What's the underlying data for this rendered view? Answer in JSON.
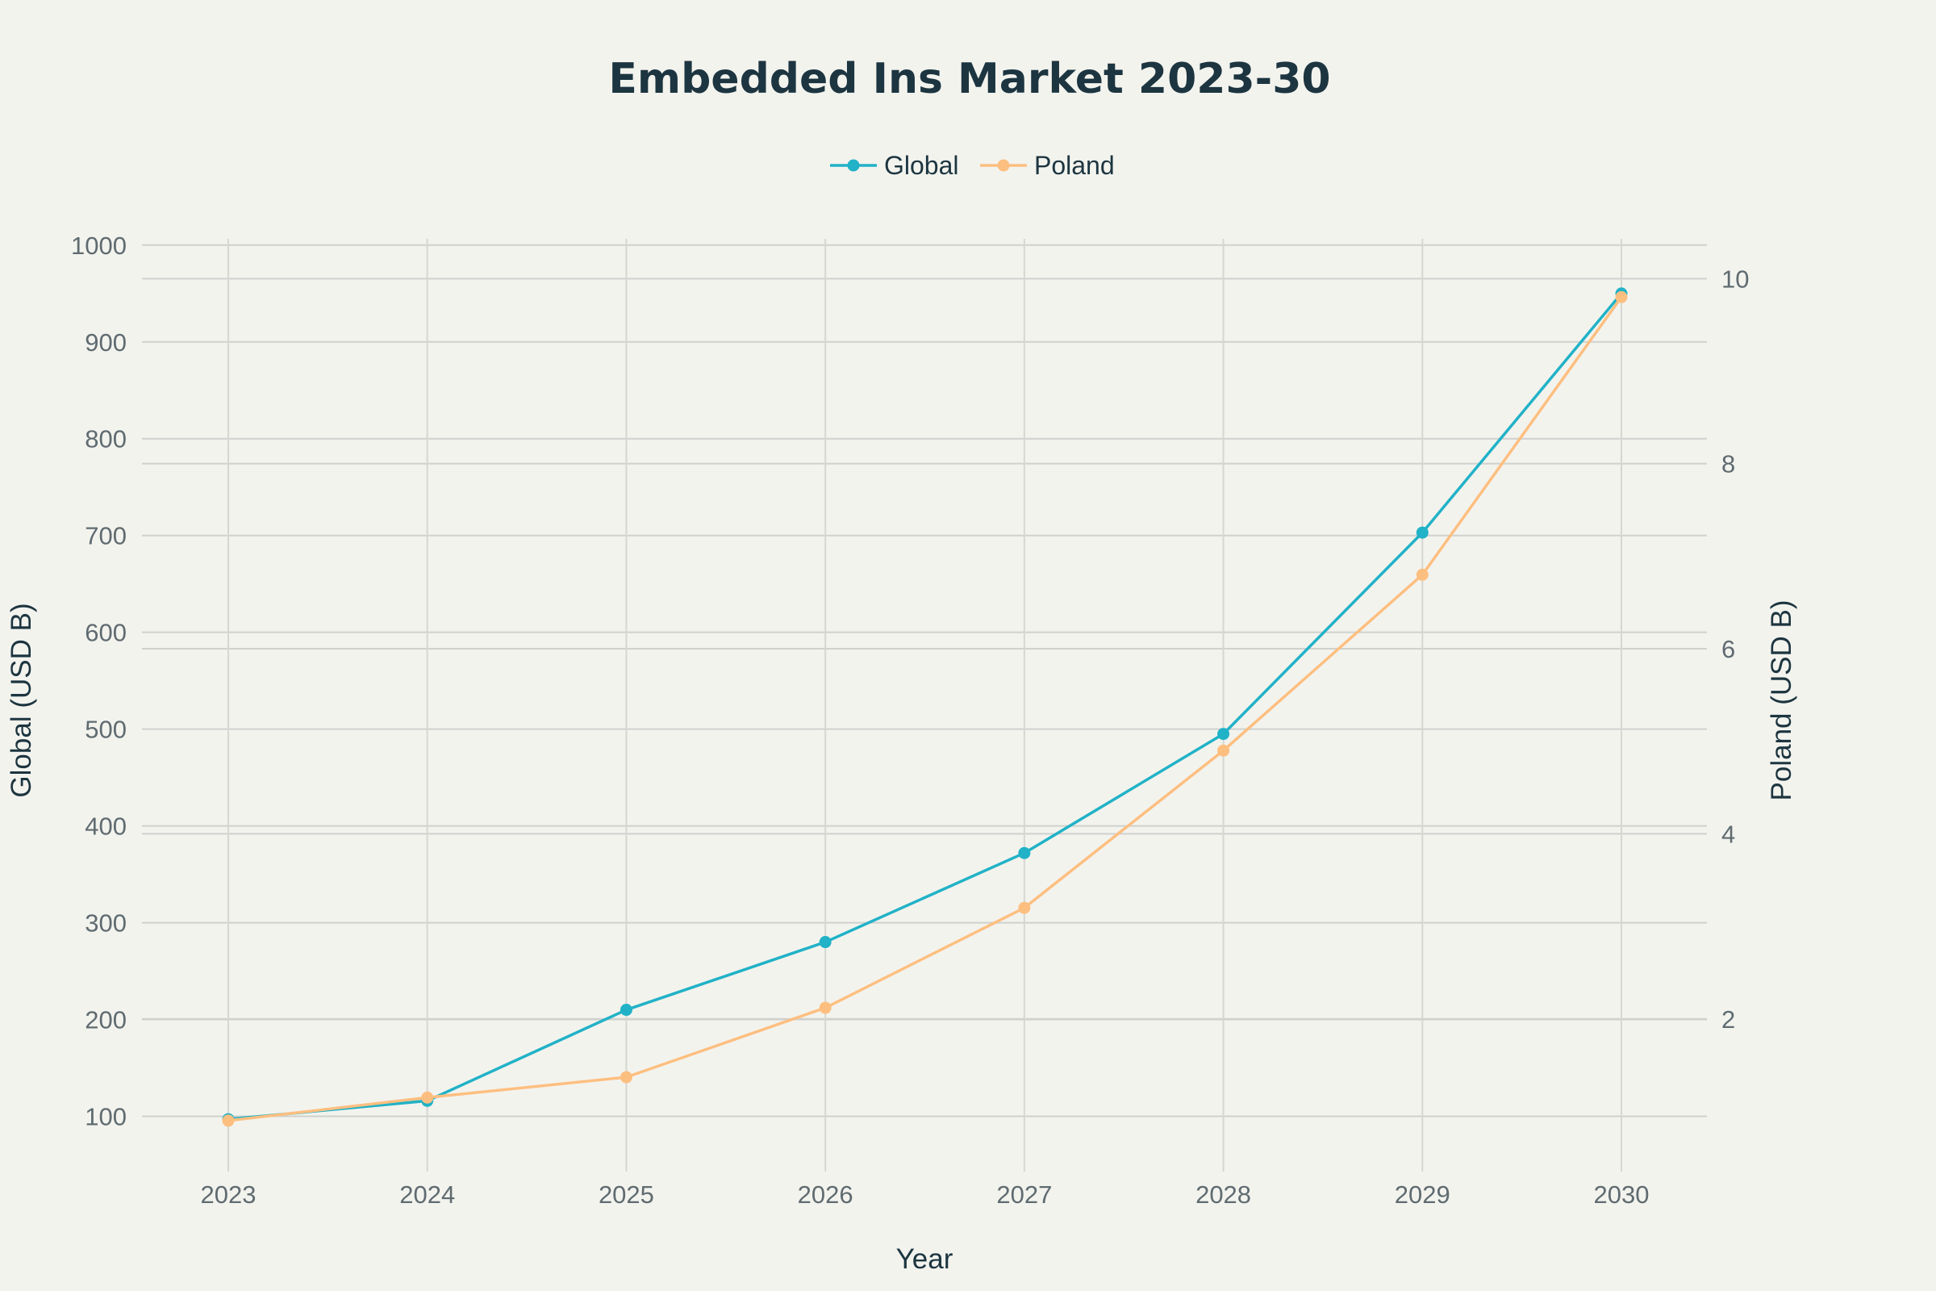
{
  "chart_data": {
    "type": "line",
    "title": "Embedded Ins Market 2023-30",
    "xlabel": "Year",
    "ylabel_left": "Global (USD B)",
    "ylabel_right": "Poland (USD B)",
    "categories": [
      "2023",
      "2024",
      "2025",
      "2026",
      "2027",
      "2028",
      "2029",
      "2030"
    ],
    "y_left_ticks": [
      100,
      200,
      300,
      400,
      500,
      600,
      700,
      800,
      900,
      1000
    ],
    "y_right_ticks": [
      2,
      4,
      6,
      8,
      10
    ],
    "y_left_range": [
      42.9,
      1006.5
    ],
    "y_right_range": [
      0.35,
      10.43
    ],
    "grid": true,
    "legend_position": "top-center",
    "series": [
      {
        "name": "Global",
        "axis": "left",
        "color": "#21b2c7",
        "values": [
          97,
          116,
          210,
          280,
          372,
          495,
          703,
          950
        ]
      },
      {
        "name": "Poland",
        "axis": "right",
        "color": "#fdbf80",
        "values": [
          0.9,
          1.15,
          1.37,
          2.12,
          3.2,
          4.9,
          6.8,
          9.8
        ]
      }
    ]
  }
}
